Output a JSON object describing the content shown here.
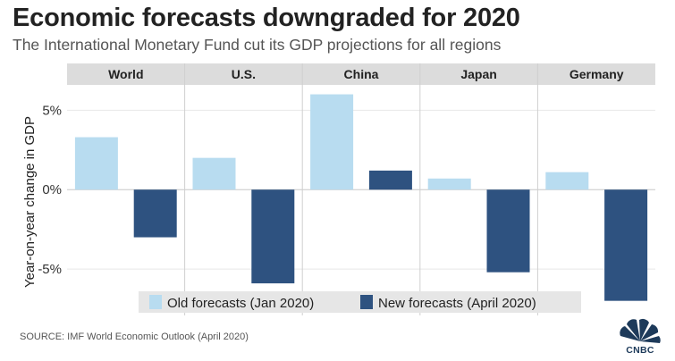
{
  "title": "Economic forecasts downgraded for 2020",
  "subtitle": "The International Monetary Fund cut its GDP projections for all regions",
  "source": "SOURCE: IMF World Economic Outlook (April 2020)",
  "logo": {
    "text": "CNBC",
    "icon": "nbc-peacock-icon"
  },
  "colors": {
    "old": "#b8dcf0",
    "new": "#2e5280",
    "legend_bg": "#e6e6e6"
  },
  "chart_data": {
    "type": "bar",
    "title": "Economic forecasts downgraded for 2020",
    "subtitle": "The International Monetary Fund cut its GDP projections for all regions",
    "xlabel": "",
    "ylabel": "Year-on-year change in GDP",
    "categories": [
      "World",
      "U.S.",
      "China",
      "Japan",
      "Germany"
    ],
    "series": [
      {
        "name": "Old forecasts (Jan 2020)",
        "values": [
          3.3,
          2.0,
          6.0,
          0.7,
          1.1
        ]
      },
      {
        "name": "New forecasts (April 2020)",
        "values": [
          -3.0,
          -5.9,
          1.2,
          -5.2,
          -7.0
        ]
      }
    ],
    "ylim": [
      -7.3,
      6.2
    ],
    "yticks": [
      5,
      0,
      -5
    ],
    "ytick_labels": [
      "5%",
      "0%",
      "-5%"
    ],
    "grid": true,
    "legend": "bottom"
  }
}
